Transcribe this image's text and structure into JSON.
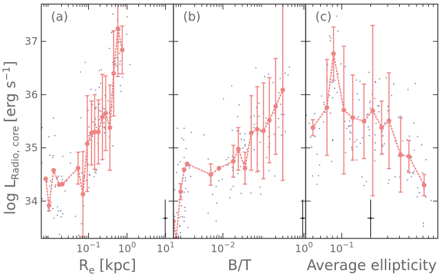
{
  "figure": {
    "ylabel_main": "log L",
    "ylabel_sub": "Radio, core",
    "ylabel_units": "[erg s",
    "ylabel_exp": "−1",
    "ylabel_close": "]",
    "colors": {
      "binned": "#ef8383",
      "scatter": "#3a3f6e",
      "axis": "#222222",
      "label": "#666666"
    }
  },
  "chart_data": [
    {
      "type": "scatter",
      "panel_label": "(a)",
      "xlabel_main": "R",
      "xlabel_sub": "e",
      "xlabel_units": " [kpc]",
      "xscale": "log",
      "xlim": [
        0.006,
        16
      ],
      "ylim": [
        33.3,
        37.7
      ],
      "xticks": [
        {
          "v": 0.1,
          "b": "10",
          "e": "−1"
        },
        {
          "v": 1,
          "b": "10",
          "e": "0"
        },
        {
          "v": 10,
          "b": "10",
          "e": "1"
        }
      ],
      "yticks": [
        34,
        35,
        36,
        37
      ],
      "binned": [
        {
          "x": 0.0078,
          "y": 34.42,
          "e": 0
        },
        {
          "x": 0.0095,
          "y": 33.92,
          "e": 0.1
        },
        {
          "x": 0.0125,
          "y": 34.58,
          "e": 0
        },
        {
          "x": 0.0175,
          "y": 34.31,
          "e": 0
        },
        {
          "x": 0.021,
          "y": 34.32,
          "e": 0
        },
        {
          "x": 0.054,
          "y": 34.62,
          "e": 0.3
        },
        {
          "x": 0.072,
          "y": 34.13,
          "e": 0.8
        },
        {
          "x": 0.093,
          "y": 35.08,
          "e": 0.9
        },
        {
          "x": 0.12,
          "y": 35.28,
          "e": 0.6
        },
        {
          "x": 0.145,
          "y": 35.3,
          "e": 0.7
        },
        {
          "x": 0.18,
          "y": 35.3,
          "e": 0.6
        },
        {
          "x": 0.23,
          "y": 35.58,
          "e": 0.8
        },
        {
          "x": 0.28,
          "y": 35.65,
          "e": 0.7
        },
        {
          "x": 0.36,
          "y": 35.38,
          "e": 0.8
        },
        {
          "x": 0.45,
          "y": 36.4,
          "e": 0.8
        },
        {
          "x": 0.58,
          "y": 37.24,
          "e": 0.9
        },
        {
          "x": 0.75,
          "y": 36.84,
          "e": 0.45
        }
      ],
      "typical_error": {
        "x": 9.8,
        "y": 33.68,
        "ex": 0.06,
        "ey": 0.35
      }
    },
    {
      "type": "scatter",
      "panel_label": "(b)",
      "xlabel_main": "B/T",
      "xlabel_sub": "",
      "xlabel_units": "",
      "xscale": "log",
      "xlim": [
        0.0006,
        1.1
      ],
      "ylim": [
        33.3,
        37.7
      ],
      "xticks": [
        {
          "v": 0.01,
          "b": "10",
          "e": "−2"
        },
        {
          "v": 1,
          "b": "10",
          "e": "0"
        }
      ],
      "yticks": [
        34,
        35,
        36,
        37
      ],
      "binned": [
        {
          "x": 0.0006,
          "y": 33.62,
          "e": 0
        },
        {
          "x": 0.0007,
          "y": 33.3,
          "e": 0
        },
        {
          "x": 0.0009,
          "y": 34.18,
          "e": 0.15
        },
        {
          "x": 0.0011,
          "y": 34.59,
          "e": 0
        },
        {
          "x": 0.0013,
          "y": 34.7,
          "e": 0
        },
        {
          "x": 0.005,
          "y": 34.5,
          "e": 0.2
        },
        {
          "x": 0.008,
          "y": 34.62,
          "e": 0
        },
        {
          "x": 0.018,
          "y": 34.75,
          "e": 0.3
        },
        {
          "x": 0.024,
          "y": 34.98,
          "e": 0.4
        },
        {
          "x": 0.035,
          "y": 34.62,
          "e": 0.3
        },
        {
          "x": 0.05,
          "y": 35.28,
          "e": 0.7
        },
        {
          "x": 0.07,
          "y": 35.35,
          "e": 0.8
        },
        {
          "x": 0.1,
          "y": 35.32,
          "e": 0.9
        },
        {
          "x": 0.14,
          "y": 35.52,
          "e": 0.8
        },
        {
          "x": 0.2,
          "y": 35.78,
          "e": 0.9
        },
        {
          "x": 0.3,
          "y": 36.09,
          "e": 1.7
        }
      ],
      "typical_error": {
        "x": 0.93,
        "y": 33.68,
        "ex": 0.06,
        "ey": 0.35
      }
    },
    {
      "type": "scatter",
      "panel_label": "(c)",
      "xlabel_main": "Average ellipticity",
      "xlabel_sub": "",
      "xlabel_units": "",
      "xscale": "log",
      "xlim": [
        0.042,
        1.0
      ],
      "ylim": [
        33.3,
        37.7
      ],
      "xticks": [
        {
          "v": 0.1,
          "b": "10",
          "e": "−1"
        }
      ],
      "yticks": [
        34,
        35,
        36,
        37
      ],
      "binned": [
        {
          "x": 0.05,
          "y": 35.38,
          "e": 0.15
        },
        {
          "x": 0.07,
          "y": 35.76,
          "e": 0.9
        },
        {
          "x": 0.082,
          "y": 36.77,
          "e": 0.5
        },
        {
          "x": 0.105,
          "y": 35.71,
          "e": 1.2
        },
        {
          "x": 0.13,
          "y": 35.57,
          "e": 0.8
        },
        {
          "x": 0.17,
          "y": 35.5,
          "e": 0.7
        },
        {
          "x": 0.21,
          "y": 35.7,
          "e": 1.6
        },
        {
          "x": 0.26,
          "y": 35.38,
          "e": 0.5
        },
        {
          "x": 0.31,
          "y": 35.51,
          "e": 0.9
        },
        {
          "x": 0.41,
          "y": 34.87,
          "e": 0.7
        },
        {
          "x": 0.5,
          "y": 34.84,
          "e": 0.3
        },
        {
          "x": 0.72,
          "y": 34.3,
          "e": 0.2
        }
      ],
      "typical_error": {
        "x": 0.2,
        "y": 33.68,
        "ex": 0.035,
        "ey": 0.35
      }
    }
  ]
}
